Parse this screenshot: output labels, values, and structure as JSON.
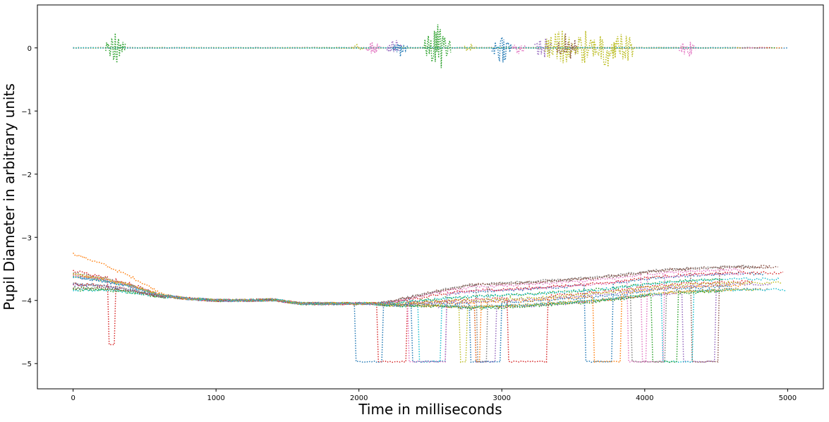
{
  "chart_data": {
    "type": "line",
    "title": "",
    "xlabel": "Time in milliseconds",
    "ylabel": "Pupil Diameter in arbitrary units",
    "xlim": [
      -250,
      5250
    ],
    "ylim": [
      -5.4,
      0.68
    ],
    "xticks": [
      0,
      1000,
      2000,
      3000,
      4000,
      5000
    ],
    "yticks": [
      0,
      -1,
      -2,
      -3,
      -4,
      -5
    ],
    "grid": false,
    "legend": "none",
    "line_style": "dotted",
    "colors": [
      "#1f77b4",
      "#ff7f0e",
      "#2ca02c",
      "#d62728",
      "#9467bd",
      "#8c564b",
      "#e377c2",
      "#7f7f7f",
      "#bcbd22",
      "#17becf"
    ],
    "series_groups": [
      {
        "group": "diameter-traces",
        "base_curve": {
          "x": [
            0,
            200,
            400,
            600,
            800,
            1000,
            1200,
            1400,
            1600,
            1800,
            2000,
            2200,
            2400,
            2600,
            2800,
            3000,
            3200,
            3400,
            3600,
            3800,
            4000,
            4200,
            4400,
            4600
          ],
          "y": [
            -3.68,
            -3.72,
            -3.8,
            -3.92,
            -3.97,
            -4.0,
            -4.0,
            -3.99,
            -4.05,
            -4.05,
            -4.05,
            -4.05,
            -4.0,
            -3.95,
            -3.92,
            -3.9,
            -3.88,
            -3.85,
            -3.82,
            -3.78,
            -3.72,
            -3.68,
            -3.66,
            -3.64
          ]
        },
        "dropout_value": -4.97,
        "trace_count": 20
      },
      {
        "group": "derivative-traces",
        "baseline": 0,
        "burst_regions": [
          {
            "x": 300,
            "color": "#2ca02c",
            "amp": 0.26
          },
          {
            "x": 1990,
            "color": "#bcbd22",
            "amp": 0.06
          },
          {
            "x": 2100,
            "color": "#e377c2",
            "amp": 0.12
          },
          {
            "x": 2250,
            "color": "#9467bd",
            "amp": 0.15
          },
          {
            "x": 2290,
            "color": "#1f77b4",
            "amp": 0.15
          },
          {
            "x": 2550,
            "color": "#2ca02c",
            "amp": 0.4
          },
          {
            "x": 2780,
            "color": "#bcbd22",
            "amp": 0.08
          },
          {
            "x": 3000,
            "color": "#1f77b4",
            "amp": 0.25
          },
          {
            "x": 3120,
            "color": "#e377c2",
            "amp": 0.12
          },
          {
            "x": 3290,
            "color": "#9467bd",
            "amp": 0.2
          },
          {
            "x": 3400,
            "color": "#bcbd22",
            "amp": 0.42
          },
          {
            "x": 3460,
            "color": "#8c564b",
            "amp": 0.28
          },
          {
            "x": 3580,
            "color": "#bcbd22",
            "amp": 0.3
          },
          {
            "x": 3720,
            "color": "#bcbd22",
            "amp": 0.38
          },
          {
            "x": 3850,
            "color": "#bcbd22",
            "amp": 0.32
          },
          {
            "x": 4300,
            "color": "#e377c2",
            "amp": 0.18
          }
        ],
        "max_x": 5000
      }
    ]
  }
}
